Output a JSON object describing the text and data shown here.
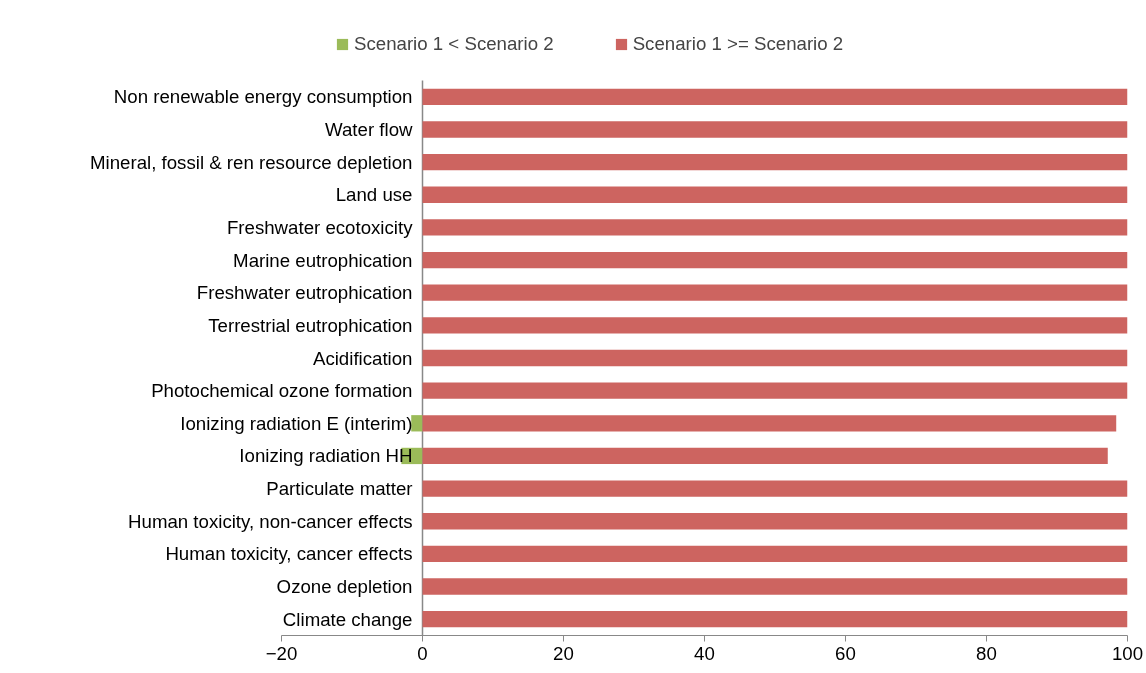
{
  "chart_data": {
    "type": "bar",
    "orientation": "horizontal",
    "categories": [
      "Non renewable energy consumption",
      "Water flow",
      "Mineral, fossil & ren resource depletion",
      "Land use",
      "Freshwater ecotoxicity",
      "Marine eutrophication",
      "Freshwater eutrophication",
      "Terrestrial eutrophication",
      "Acidification",
      "Photochemical ozone formation",
      "Ionizing radiation E (interim)",
      "Ionizing radiation HH",
      "Particulate matter",
      "Human toxicity, non-cancer effects",
      "Human toxicity, cancer effects",
      "Ozone depletion",
      "Climate change"
    ],
    "series": [
      {
        "name": "Scenario 1 < Scenario 2",
        "color": "#9bbb59",
        "values": [
          null,
          null,
          null,
          null,
          null,
          null,
          null,
          null,
          null,
          null,
          -1.6,
          -3.0,
          null,
          null,
          null,
          null,
          null
        ]
      },
      {
        "name": "Scenario 1 >= Scenario 2",
        "color": "#cd6460",
        "values": [
          100,
          100,
          100,
          100,
          100,
          100,
          100,
          100,
          100,
          100,
          98.4,
          97.2,
          100,
          100,
          100,
          100,
          100
        ]
      }
    ],
    "xlim": [
      -20,
      100
    ],
    "xticks": [
      -20,
      0,
      20,
      40,
      60,
      80,
      100
    ],
    "grid": false,
    "legend": "top"
  }
}
